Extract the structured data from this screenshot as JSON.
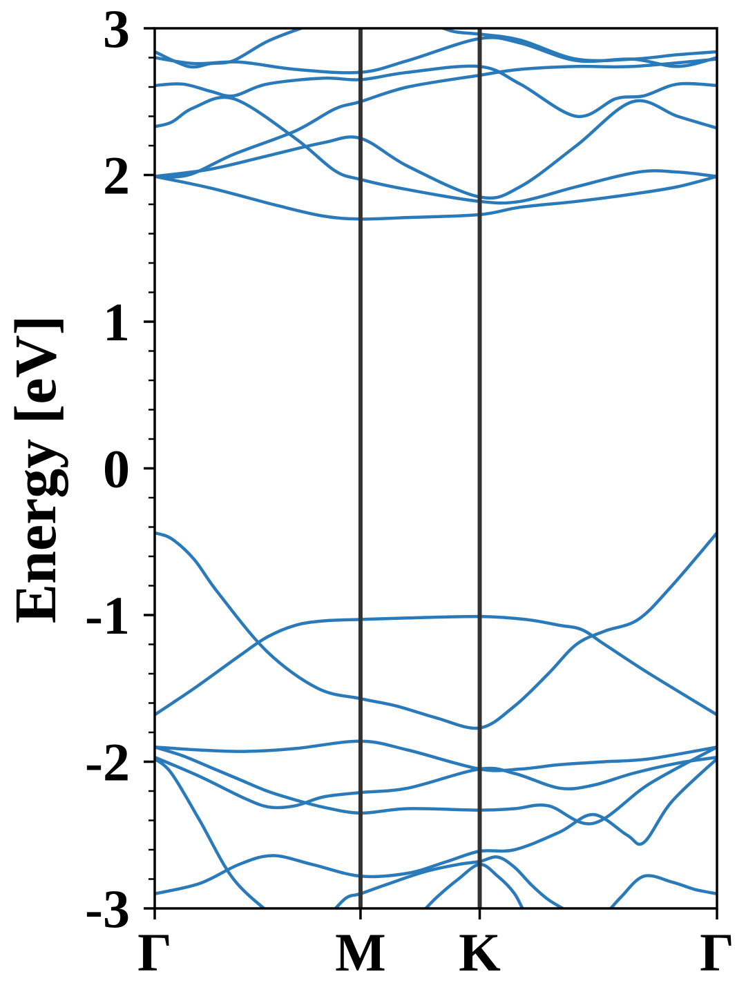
{
  "chart_data": {
    "type": "line",
    "title": "",
    "ylabel": "Energy [eV]",
    "xlabel": "",
    "ylim": [
      -3,
      3
    ],
    "yticks": [
      -3,
      -2,
      -1,
      0,
      1,
      2,
      3
    ],
    "ytick_labels": [
      "-3",
      "-2",
      "-1",
      "0",
      "1",
      "2",
      "3"
    ],
    "y_minor_step": 0.2,
    "x_range": [
      0,
      1
    ],
    "kpoints": [
      {
        "label": "Γ",
        "x": 0
      },
      {
        "label": "M",
        "x": 0.366
      },
      {
        "label": "K",
        "x": 0.578
      },
      {
        "label": "Γ",
        "x": 1
      }
    ],
    "band_color": "#2a7ab9",
    "kline_color": "#333333",
    "grid": false,
    "legend": "none",
    "series": [
      {
        "x": [
          0.0,
          0.03,
          0.07,
          0.113,
          0.2,
          0.29,
          0.366,
          0.43,
          0.5,
          0.578,
          0.64,
          0.7,
          0.75,
          0.8,
          0.86,
          0.92,
          1.0
        ],
        "y": [
          -0.44,
          -0.48,
          -0.62,
          -0.85,
          -1.25,
          -1.5,
          -1.57,
          -1.62,
          -1.7,
          -1.77,
          -1.62,
          -1.4,
          -1.2,
          -1.11,
          -1.03,
          -0.8,
          -0.44
        ]
      },
      {
        "x": [
          0.0,
          0.07,
          0.15,
          0.2,
          0.25,
          0.3,
          0.366,
          0.45,
          0.578,
          0.66,
          0.72,
          0.76,
          0.8,
          0.88,
          1.0
        ],
        "y": [
          -1.68,
          -1.5,
          -1.28,
          -1.15,
          -1.07,
          -1.04,
          -1.03,
          -1.02,
          -1.01,
          -1.03,
          -1.07,
          -1.1,
          -1.2,
          -1.4,
          -1.68
        ]
      },
      {
        "x": [
          0.0,
          0.08,
          0.16,
          0.25,
          0.366,
          0.45,
          0.578,
          0.65,
          0.72,
          0.8,
          0.88,
          1.0
        ],
        "y": [
          -1.9,
          -1.92,
          -1.93,
          -1.91,
          -1.86,
          -1.92,
          -2.05,
          -2.05,
          -2.02,
          -2.0,
          -1.98,
          -1.9
        ]
      },
      {
        "x": [
          0.0,
          0.05,
          0.1,
          0.15,
          0.2,
          0.25,
          0.3,
          0.366,
          0.45,
          0.578,
          0.64,
          0.7,
          0.78,
          0.88,
          1.0
        ],
        "y": [
          -1.9,
          -1.96,
          -2.04,
          -2.12,
          -2.2,
          -2.26,
          -2.31,
          -2.35,
          -2.32,
          -2.33,
          -2.32,
          -2.3,
          -2.42,
          -2.15,
          -1.9
        ]
      },
      {
        "x": [
          0.0,
          0.08,
          0.16,
          0.205,
          0.25,
          0.3,
          0.366,
          0.45,
          0.578,
          0.64,
          0.72,
          0.78,
          0.85,
          0.93,
          1.0
        ],
        "y": [
          -1.97,
          -2.1,
          -2.25,
          -2.31,
          -2.3,
          -2.24,
          -2.21,
          -2.18,
          -2.05,
          -2.08,
          -2.18,
          -2.16,
          -2.08,
          -2.01,
          -1.97
        ]
      },
      {
        "x": [
          0.0,
          0.03,
          0.08,
          0.14,
          0.21
        ],
        "y": [
          -1.98,
          -2.08,
          -2.4,
          -2.8,
          -3.05
        ]
      },
      {
        "x": [
          0.0,
          0.08,
          0.15,
          0.21,
          0.28,
          0.366,
          0.45,
          0.52,
          0.578,
          0.64,
          0.72,
          0.78,
          0.84,
          0.87,
          0.92,
          1.0
        ],
        "y": [
          -2.9,
          -2.83,
          -2.7,
          -2.64,
          -2.7,
          -2.78,
          -2.76,
          -2.68,
          -2.61,
          -2.6,
          -2.48,
          -2.36,
          -2.5,
          -2.55,
          -2.27,
          -1.98
        ]
      },
      {
        "x": [
          0.31,
          0.34,
          0.366,
          0.41,
          0.48,
          0.54,
          0.578,
          0.61,
          0.64,
          0.67,
          0.7,
          0.735
        ],
        "y": [
          -3.05,
          -2.93,
          -2.9,
          -2.84,
          -2.75,
          -2.7,
          -2.68,
          -2.65,
          -2.72,
          -2.84,
          -2.94,
          -3.02
        ]
      },
      {
        "x": [
          0.47,
          0.5,
          0.54,
          0.578,
          0.61,
          0.64,
          0.66
        ],
        "y": [
          -3.05,
          -2.93,
          -2.8,
          -2.7,
          -2.78,
          -2.9,
          -3.05
        ]
      },
      {
        "x": [
          0.8,
          0.83,
          0.87,
          0.92,
          0.96,
          1.0
        ],
        "y": [
          -3.05,
          -2.92,
          -2.78,
          -2.82,
          -2.87,
          -2.9
        ]
      },
      {
        "x": [
          0.0,
          0.1,
          0.22,
          0.3,
          0.366,
          0.45,
          0.578,
          0.65,
          0.75,
          0.85,
          0.93,
          1.0
        ],
        "y": [
          1.99,
          1.91,
          1.79,
          1.72,
          1.7,
          1.71,
          1.73,
          1.78,
          1.82,
          1.87,
          1.92,
          1.99
        ]
      },
      {
        "x": [
          0.0,
          0.1,
          0.2,
          0.3,
          0.366,
          0.45,
          0.578,
          0.65,
          0.75,
          0.85,
          0.93,
          1.0
        ],
        "y": [
          1.99,
          2.04,
          2.13,
          2.22,
          2.25,
          2.06,
          1.85,
          1.92,
          2.2,
          2.5,
          2.4,
          2.32
        ]
      },
      {
        "x": [
          0.0,
          0.06,
          0.14,
          0.25,
          0.32,
          0.366,
          0.45,
          0.578,
          0.65,
          0.75,
          0.85,
          1.0
        ],
        "y": [
          1.99,
          2.0,
          2.14,
          2.3,
          2.45,
          2.5,
          2.6,
          2.68,
          2.72,
          2.74,
          2.74,
          2.79
        ]
      },
      {
        "x": [
          0.0,
          0.03,
          0.07,
          0.14,
          0.25,
          0.32,
          0.366,
          0.45,
          0.578,
          0.65,
          0.75,
          0.86,
          0.93,
          1.0
        ],
        "y": [
          2.33,
          2.36,
          2.46,
          2.52,
          2.25,
          2.03,
          1.97,
          1.9,
          1.82,
          1.82,
          1.92,
          2.02,
          2.02,
          1.99
        ]
      },
      {
        "x": [
          0.0,
          0.05,
          0.1,
          0.14,
          0.2,
          0.3,
          0.366,
          0.45,
          0.578,
          0.65,
          0.75,
          0.82,
          0.87,
          0.93,
          1.0
        ],
        "y": [
          2.61,
          2.62,
          2.57,
          2.54,
          2.62,
          2.66,
          2.65,
          2.7,
          2.74,
          2.62,
          2.4,
          2.52,
          2.54,
          2.62,
          2.61
        ]
      },
      {
        "x": [
          0.0,
          0.07,
          0.15,
          0.25,
          0.366,
          0.45,
          0.578,
          0.65,
          0.75,
          0.85,
          0.93,
          1.0
        ],
        "y": [
          2.8,
          2.76,
          2.77,
          2.72,
          2.7,
          2.78,
          2.93,
          2.9,
          2.78,
          2.79,
          2.74,
          2.8
        ]
      },
      {
        "x": [
          0.0,
          0.06,
          0.1,
          0.14,
          0.2,
          0.26,
          0.3
        ],
        "y": [
          2.84,
          2.74,
          2.76,
          2.78,
          2.91,
          3.0,
          3.05
        ]
      },
      {
        "x": [
          0.48,
          0.53,
          0.578,
          0.65,
          0.75,
          0.85,
          0.93,
          1.0
        ],
        "y": [
          3.05,
          2.98,
          2.96,
          2.92,
          2.79,
          2.79,
          2.82,
          2.84
        ]
      }
    ]
  }
}
